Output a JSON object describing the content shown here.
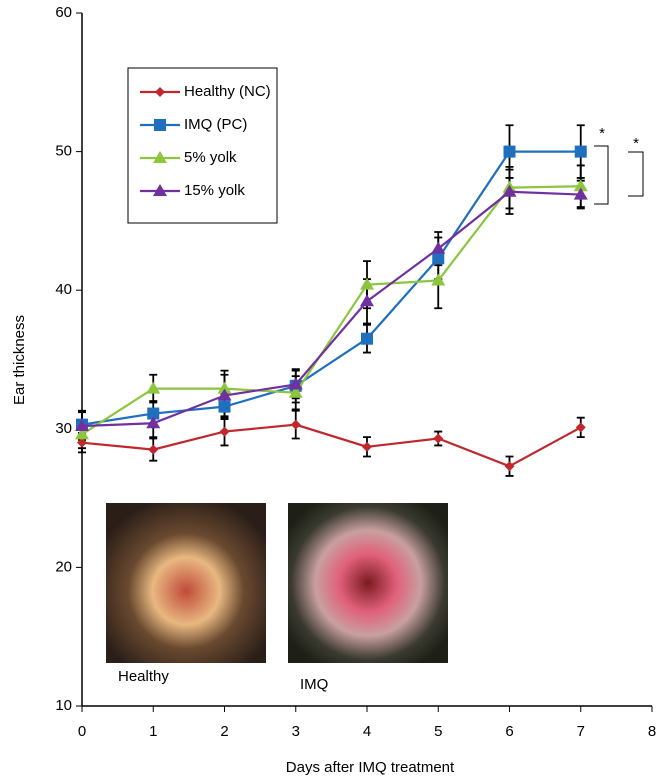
{
  "chart_data": {
    "type": "line",
    "xlabel": "Days after IMQ treatment",
    "ylabel": "Ear thickness",
    "x": [
      0,
      1,
      2,
      3,
      4,
      5,
      6,
      7
    ],
    "series": [
      {
        "name": "Healthy (NC)",
        "color": "#c0282d",
        "marker": "diamond",
        "values": [
          29.0,
          28.5,
          29.8,
          30.3,
          28.7,
          29.3,
          27.3,
          30.1
        ],
        "errors": [
          0.7,
          0.8,
          1.0,
          1.0,
          0.7,
          0.5,
          0.7,
          0.7
        ]
      },
      {
        "name": "IMQ (PC)",
        "color": "#1f6fbf",
        "marker": "square",
        "values": [
          30.3,
          31.1,
          31.6,
          33.1,
          36.5,
          42.3,
          50.0,
          50.0
        ],
        "errors": [
          1.0,
          0.9,
          0.9,
          1.2,
          1.0,
          1.5,
          1.9,
          1.9
        ]
      },
      {
        "name": "5% yolk",
        "color": "#8cc63f",
        "marker": "triangle",
        "values": [
          29.6,
          32.9,
          32.9,
          32.6,
          40.4,
          40.7,
          47.4,
          47.5
        ],
        "errors": [
          1.0,
          1.0,
          1.3,
          1.2,
          1.7,
          2.0,
          1.5,
          1.5
        ]
      },
      {
        "name": "15% yolk",
        "color": "#7030a0",
        "marker": "triangle",
        "values": [
          30.2,
          30.4,
          32.4,
          33.2,
          39.2,
          43.0,
          47.1,
          46.9
        ],
        "errors": [
          1.0,
          1.0,
          1.5,
          1.0,
          1.6,
          1.2,
          1.6,
          1.0
        ]
      }
    ],
    "xlim": [
      0,
      8
    ],
    "xticks": [
      0,
      1,
      2,
      3,
      4,
      5,
      6,
      7,
      8
    ],
    "ylim": [
      10,
      60
    ],
    "yticks": [
      10,
      20,
      30,
      40,
      50,
      60
    ],
    "annotations": [
      "*",
      "*",
      "Healthy",
      "IMQ"
    ]
  }
}
